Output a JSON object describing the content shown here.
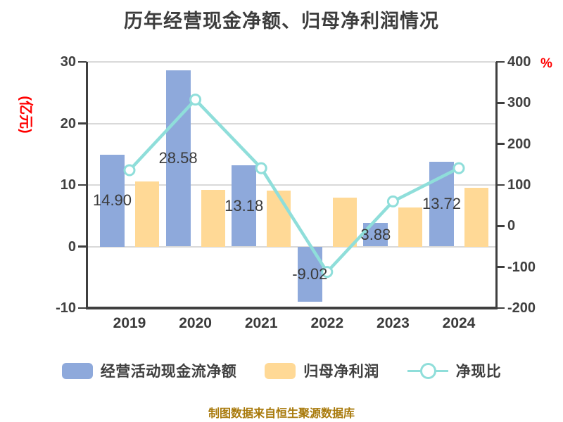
{
  "chart_data": {
    "type": "combo-bar-line",
    "title": "历年经营现金净额、归母净利润情况",
    "categories": [
      "2019",
      "2020",
      "2021",
      "2022",
      "2023",
      "2024"
    ],
    "series": [
      {
        "name": "经营活动现金流净额",
        "type": "bar",
        "axis": "left",
        "color": "#8EA9DB",
        "values": [
          14.9,
          28.58,
          13.18,
          -9.02,
          3.88,
          13.72
        ],
        "labels": [
          "14.90",
          "28.58",
          "13.18",
          "-9.02",
          "3.88",
          "13.72"
        ]
      },
      {
        "name": "归母净利润",
        "type": "bar",
        "axis": "left",
        "color": "#FFD996",
        "values": [
          10.6,
          9.2,
          9.1,
          7.9,
          6.3,
          9.6
        ]
      },
      {
        "name": "净现比",
        "type": "line",
        "axis": "right",
        "color": "#8FDEDA",
        "marker": "hollow-circle",
        "values_pct": [
          136,
          308,
          141,
          -112,
          60,
          141
        ]
      }
    ],
    "left_axis": {
      "label": "(亿元)",
      "label_color": "#FF0000",
      "ticks": [
        30,
        20,
        10,
        0,
        -10
      ],
      "range": [
        -10,
        30
      ]
    },
    "right_axis": {
      "label": "%",
      "label_color": "#FF0000",
      "ticks": [
        400,
        300,
        200,
        100,
        0,
        -100,
        -200
      ],
      "range": [
        -200,
        400
      ]
    },
    "grid": true,
    "legend_position": "bottom",
    "footer": "制图数据来自恒生聚源数据库",
    "colors": {
      "axis": "#3F3F3F",
      "grid": "#D9D9D9",
      "text": "#3F3F3F",
      "footer": "#A8790A",
      "background": "#FFFFFF"
    }
  }
}
